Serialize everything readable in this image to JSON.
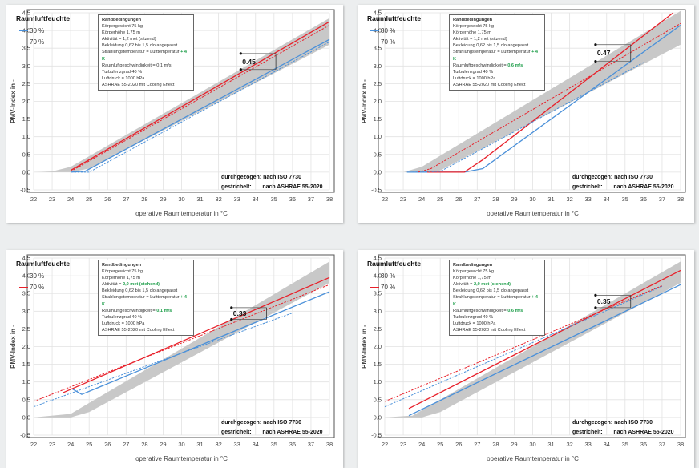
{
  "colors": {
    "rh30": "#4a90d9",
    "rh70": "#e8202a",
    "band": "#c8c8c8",
    "highlight": "#1e9e4a"
  },
  "chart_data": [
    {
      "type": "line",
      "xlabel": "operative Raumtemperatur  in °C",
      "ylabel": "PMV-Index  in -",
      "xlim": [
        22,
        38
      ],
      "ylim": [
        -0.5,
        4.5
      ],
      "xticks": [
        22,
        23,
        24,
        25,
        26,
        27,
        28,
        29,
        30,
        31,
        32,
        33,
        34,
        35,
        36,
        37,
        38
      ],
      "yticks": [
        "-0.5",
        "0.0",
        "0.5",
        "1.0",
        "1.5",
        "2.0",
        "2.5",
        "3.0",
        "3.5",
        "4.0",
        "4.5"
      ],
      "grid": true,
      "legend_title": "Raumluftfeuchte",
      "legend": [
        "30 %",
        "70 %"
      ],
      "conditions": {
        "title": "Randbedingungen",
        "lines": [
          {
            "text": "Körpergewicht 75 kg",
            "hl": ""
          },
          {
            "text": "Körperhöhe 1,75 m",
            "hl": ""
          },
          {
            "text": "Aktivität = 1,2 met (sitzend)",
            "hl": ""
          },
          {
            "text": "Bekleidung 0,62 bis 1,5 clo angepasst",
            "hl": ""
          },
          {
            "text": "Strahlungstemperatur = Lufttemperatur ",
            "hl": "+ 4 K"
          },
          {
            "text": "Raumluftgeschwindigkeit = 0,1 m/s",
            "hl": ""
          },
          {
            "text": "Turbulenzgrad 40 %",
            "hl": ""
          },
          {
            "text": "Luftdruck = 1000  hPa",
            "hl": ""
          },
          {
            "text": "ASHRAE 55-2020  mit Cooling Effect",
            "hl": ""
          }
        ]
      },
      "notes": [
        "durchgezogen: nach ISO 7730",
        "gestrichelt:       nach ASHRAE 55-2020"
      ],
      "band": {
        "upper": [
          [
            22,
            0
          ],
          [
            23,
            0.02
          ],
          [
            24,
            0.15
          ],
          [
            38,
            4.35
          ]
        ],
        "lower": [
          [
            22,
            0
          ],
          [
            24,
            0
          ],
          [
            25,
            0.1
          ],
          [
            38,
            3.6
          ]
        ]
      },
      "series": [
        {
          "name": "30 % ISO 7730",
          "rh": "30",
          "style": "solid",
          "points": [
            [
              24,
              0
            ],
            [
              24.8,
              0.03
            ],
            [
              38,
              3.75
            ]
          ]
        },
        {
          "name": "70 % ISO 7730",
          "rh": "70",
          "style": "solid",
          "points": [
            [
              24,
              0.05
            ],
            [
              38,
              4.25
            ]
          ]
        },
        {
          "name": "30 % ASHRAE 55-2020",
          "rh": "30",
          "style": "dashed",
          "points": [
            [
              24.2,
              0
            ],
            [
              25,
              0
            ],
            [
              38,
              3.68
            ]
          ]
        },
        {
          "name": "70 % ASHRAE 55-2020",
          "rh": "70",
          "style": "dashed",
          "points": [
            [
              24,
              0.02
            ],
            [
              38,
              4.15
            ]
          ]
        }
      ],
      "annotation": {
        "label": "0.45",
        "x": 35.1,
        "top": 3.35,
        "bottom": 2.9
      }
    },
    {
      "type": "line",
      "xlabel": "operative Raumtemperatur  in °C",
      "ylabel": "PMV-Index  in -",
      "xlim": [
        22,
        38
      ],
      "ylim": [
        -0.5,
        4.5
      ],
      "xticks": [
        22,
        23,
        24,
        25,
        26,
        27,
        28,
        29,
        30,
        31,
        32,
        33,
        34,
        35,
        36,
        37,
        38
      ],
      "yticks": [
        "-0.5",
        "0.0",
        "0.5",
        "1.0",
        "1.5",
        "2.0",
        "2.5",
        "3.0",
        "3.5",
        "4.0",
        "4.5"
      ],
      "grid": true,
      "legend_title": "Raumluftfeuchte",
      "legend": [
        "30 %",
        "70 %"
      ],
      "conditions": {
        "title": "Randbedingungen",
        "lines": [
          {
            "text": "Körpergewicht 75 kg",
            "hl": ""
          },
          {
            "text": "Körperhöhe 1,75 m",
            "hl": ""
          },
          {
            "text": "Aktivität = 1,2 met (sitzend)",
            "hl": ""
          },
          {
            "text": "Bekleidung 0,62 bis 1,5 clo angepasst",
            "hl": ""
          },
          {
            "text": "Strahlungstemperatur = Lufttemperatur ",
            "hl": "+ 4 K"
          },
          {
            "text": "Raumluftgeschwindigkeit = ",
            "hl": "0,6 m/s"
          },
          {
            "text": "Turbulenzgrad 40 %",
            "hl": ""
          },
          {
            "text": "Luftdruck = 1000  hPa",
            "hl": ""
          },
          {
            "text": "ASHRAE 55-2020  mit Cooling Effect",
            "hl": ""
          }
        ]
      },
      "notes": [
        "durchgezogen: nach ISO 7730",
        "gestrichelt:       nach ASHRAE 55-2020"
      ],
      "band": {
        "upper": [
          [
            23,
            0
          ],
          [
            24,
            0.15
          ],
          [
            38,
            4.55
          ]
        ],
        "lower": [
          [
            23,
            0
          ],
          [
            24.5,
            0
          ],
          [
            25,
            0.05
          ],
          [
            38,
            3.6
          ]
        ]
      },
      "series": [
        {
          "name": "30 % ISO 7730",
          "rh": "30",
          "style": "solid",
          "points": [
            [
              23.2,
              0
            ],
            [
              26.3,
              0
            ],
            [
              27.3,
              0.1
            ],
            [
              35.3,
              3.13
            ],
            [
              38,
              4.15
            ]
          ]
        },
        {
          "name": "70 % ISO 7730",
          "rh": "70",
          "style": "solid",
          "points": [
            [
              24.3,
              0
            ],
            [
              26.3,
              0
            ],
            [
              27.3,
              0.35
            ],
            [
              37.6,
              4.5
            ]
          ]
        },
        {
          "name": "30 % ASHRAE 55-2020",
          "rh": "30",
          "style": "dashed",
          "points": [
            [
              23.5,
              0
            ],
            [
              25,
              0.02
            ],
            [
              36,
              3.1
            ]
          ]
        },
        {
          "name": "70 % ASHRAE 55-2020",
          "rh": "70",
          "style": "dashed",
          "points": [
            [
              23.8,
              0
            ],
            [
              24.5,
              0.1
            ],
            [
              38,
              4.2
            ]
          ]
        }
      ],
      "annotation": {
        "label": "0.47",
        "x": 35.3,
        "top": 3.6,
        "bottom": 3.13
      }
    },
    {
      "type": "line",
      "xlabel": "operative Raumtemperatur  in °C",
      "ylabel": "PMV-Index  in -",
      "xlim": [
        22,
        38
      ],
      "ylim": [
        -0.5,
        4.5
      ],
      "xticks": [
        22,
        23,
        24,
        25,
        26,
        27,
        28,
        29,
        30,
        31,
        32,
        33,
        34,
        35,
        36,
        37,
        38
      ],
      "yticks": [
        "-0.5",
        "0.0",
        "0.5",
        "1.0",
        "1.5",
        "2.0",
        "2.5",
        "3.0",
        "3.5",
        "4.0",
        "4.5"
      ],
      "grid": true,
      "legend_title": "Raumluftfeuchte",
      "legend": [
        "30 %",
        "70 %"
      ],
      "conditions": {
        "title": "Randbedingungen",
        "lines": [
          {
            "text": "Körpergewicht 75 kg",
            "hl": ""
          },
          {
            "text": "Körperhöhe 1,75 m",
            "hl": ""
          },
          {
            "text": "Aktivität = ",
            "hl": "2,0 met (stehend)"
          },
          {
            "text": "Bekleidung 0,62 bis 1,5 clo angepasst",
            "hl": ""
          },
          {
            "text": "Strahlungstemperatur = Lufttemperatur ",
            "hl": "+ 4 K"
          },
          {
            "text": "Raumluftgeschwindigkeit = ",
            "hl": "0,1 m/s"
          },
          {
            "text": "Turbulenzgrad 40 %",
            "hl": ""
          },
          {
            "text": "Luftdruck = 1000  hPa",
            "hl": ""
          },
          {
            "text": "ASHRAE 55-2020  mit Cooling Effect",
            "hl": ""
          }
        ]
      },
      "notes": [
        "durchgezogen: nach ISO 7730",
        "gestrichelt:       nach ASHRAE 55-2020"
      ],
      "band": {
        "upper": [
          [
            22,
            0
          ],
          [
            24,
            0.1
          ],
          [
            38,
            4.4
          ]
        ],
        "lower": [
          [
            22,
            0
          ],
          [
            24,
            0
          ],
          [
            25,
            0.15
          ],
          [
            38,
            3.8
          ]
        ]
      },
      "series": [
        {
          "name": "30 % ISO 7730",
          "rh": "30",
          "style": "solid",
          "points": [
            [
              24.1,
              0.8
            ],
            [
              24.6,
              0.65
            ],
            [
              38,
              3.55
            ]
          ]
        },
        {
          "name": "70 % ISO 7730",
          "rh": "70",
          "style": "solid",
          "points": [
            [
              23.6,
              0.7
            ],
            [
              38,
              3.95
            ]
          ]
        },
        {
          "name": "30 % ASHRAE 55-2020",
          "rh": "30",
          "style": "dashed",
          "points": [
            [
              22,
              0.3
            ],
            [
              36,
              2.95
            ]
          ]
        },
        {
          "name": "70 % ASHRAE 55-2020",
          "rh": "70",
          "style": "dashed",
          "points": [
            [
              22,
              0.45
            ],
            [
              38,
              3.75
            ]
          ]
        }
      ],
      "annotation": {
        "label": "0.33",
        "x": 34.6,
        "top": 3.1,
        "bottom": 2.77
      }
    },
    {
      "type": "line",
      "xlabel": "operative Raumtemperatur  in °C",
      "ylabel": "PMV-Index  in -",
      "xlim": [
        22,
        38
      ],
      "ylim": [
        -0.5,
        4.5
      ],
      "xticks": [
        22,
        23,
        24,
        25,
        26,
        27,
        28,
        29,
        30,
        31,
        32,
        33,
        34,
        35,
        36,
        37,
        38
      ],
      "yticks": [
        "-0.5",
        "0.0",
        "0.5",
        "1.0",
        "1.5",
        "2.0",
        "2.5",
        "3.0",
        "3.5",
        "4.0",
        "4.5"
      ],
      "grid": true,
      "legend_title": "Raumluftfeuchte",
      "legend": [
        "30 %",
        "70 %"
      ],
      "conditions": {
        "title": "Randbedingungen",
        "lines": [
          {
            "text": "Körpergewicht 75 kg",
            "hl": ""
          },
          {
            "text": "Körperhöhe 1,75 m",
            "hl": ""
          },
          {
            "text": "Aktivität = ",
            "hl": "2,0 met (stehend)"
          },
          {
            "text": "Bekleidung 0,62 bis 1,5 clo angepasst",
            "hl": ""
          },
          {
            "text": "Strahlungstemperatur = Lufttemperatur ",
            "hl": "+ 4 K"
          },
          {
            "text": "Raumluftgeschwindigkeit = ",
            "hl": "0,6 m/s"
          },
          {
            "text": "Turbulenzgrad 40 %",
            "hl": ""
          },
          {
            "text": "Luftdruck = 1000  hPa",
            "hl": ""
          },
          {
            "text": "ASHRAE 55-2020  mit Cooling Effect",
            "hl": ""
          }
        ]
      },
      "notes": [
        "durchgezogen: nach ISO 7730",
        "gestrichelt:       nach ASHRAE 55-2020"
      ],
      "band": {
        "upper": [
          [
            22,
            0
          ],
          [
            23.5,
            0.05
          ],
          [
            38,
            4.4
          ]
        ],
        "lower": [
          [
            22,
            0
          ],
          [
            24,
            0
          ],
          [
            25,
            0.15
          ],
          [
            38,
            3.8
          ]
        ]
      },
      "series": [
        {
          "name": "30 % ISO 7730",
          "rh": "30",
          "style": "solid",
          "points": [
            [
              23.3,
              0.05
            ],
            [
              38,
              3.75
            ]
          ]
        },
        {
          "name": "70 % ISO 7730",
          "rh": "70",
          "style": "solid",
          "points": [
            [
              23.3,
              0.25
            ],
            [
              38,
              4.15
            ]
          ]
        },
        {
          "name": "30 % ASHRAE 55-2020",
          "rh": "30",
          "style": "dashed",
          "points": [
            [
              22,
              0.3
            ],
            [
              37,
              3.7
            ]
          ]
        },
        {
          "name": "70 % ASHRAE 55-2020",
          "rh": "70",
          "style": "dashed",
          "points": [
            [
              22,
              0.45
            ],
            [
              37,
              3.72
            ]
          ]
        }
      ],
      "annotation": {
        "label": "0.35",
        "x": 35.3,
        "top": 3.45,
        "bottom": 3.1
      }
    }
  ]
}
